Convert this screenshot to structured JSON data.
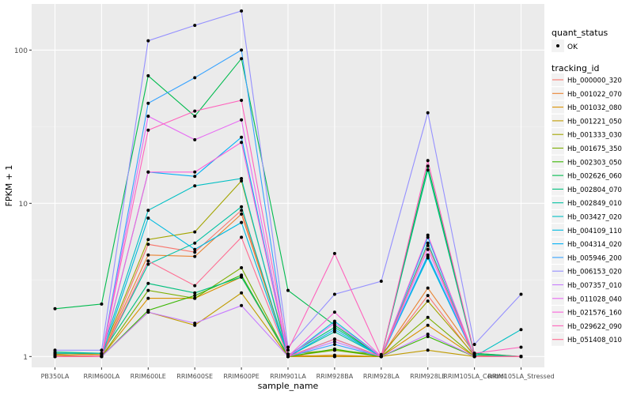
{
  "chart_data": {
    "type": "line",
    "xlabel": "sample_name",
    "ylabel": "FPKM + 1",
    "y_scale": "log10",
    "ylim": [
      0.85,
      200
    ],
    "y_ticks": [
      1,
      10,
      100
    ],
    "y_tick_labels": [
      "1",
      "10",
      "100"
    ],
    "grid": true,
    "legend_position": "right",
    "categories": [
      "PB350LA",
      "RRIM600LA",
      "RRIM600LE",
      "RRIM600SE",
      "RRIM600PE",
      "RRIM901LA",
      "RRIM928BA",
      "RRIM928LA",
      "RRIM928LE",
      "RRIM105LA_Control",
      "RRIM105LA_Stressed"
    ],
    "quant_legend": {
      "title": "quant_status",
      "items": [
        "OK"
      ]
    },
    "series_legend_title": "tracking_id",
    "series": [
      {
        "name": "Hb_000000_320",
        "color": "#F8766D",
        "values": [
          1.03,
          1.0,
          5.4,
          4.8,
          9.0,
          1.0,
          1.0,
          1.0,
          2.5,
          1.0,
          1.0
        ]
      },
      {
        "name": "Hb_001022_070",
        "color": "#EA8331",
        "values": [
          1.05,
          1.02,
          4.6,
          4.5,
          8.5,
          1.02,
          1.0,
          1.0,
          2.8,
          1.05,
          1.0
        ]
      },
      {
        "name": "Hb_001032_080",
        "color": "#D89000",
        "values": [
          1.0,
          1.0,
          2.4,
          2.4,
          3.3,
          1.0,
          1.02,
          1.0,
          1.6,
          1.0,
          1.0
        ]
      },
      {
        "name": "Hb_001221_050",
        "color": "#C09B00",
        "values": [
          1.02,
          1.0,
          1.95,
          1.6,
          2.6,
          1.0,
          1.0,
          1.0,
          1.1,
          1.0,
          1.0
        ]
      },
      {
        "name": "Hb_001333_030",
        "color": "#A3A500",
        "values": [
          1.04,
          1.04,
          5.8,
          6.5,
          14.0,
          1.04,
          1.1,
          1.03,
          2.3,
          1.02,
          1.0
        ]
      },
      {
        "name": "Hb_001675_350",
        "color": "#7CAE00",
        "values": [
          1.0,
          1.0,
          2.7,
          2.4,
          3.8,
          1.0,
          1.1,
          1.0,
          1.8,
          1.0,
          1.0
        ]
      },
      {
        "name": "Hb_002303_050",
        "color": "#39B600",
        "values": [
          1.0,
          1.0,
          2.0,
          2.5,
          3.4,
          1.0,
          1.12,
          1.0,
          1.35,
          1.0,
          1.0
        ]
      },
      {
        "name": "Hb_002626_060",
        "color": "#00BB4E",
        "values": [
          2.05,
          2.2,
          68,
          37,
          88,
          2.7,
          1.6,
          1.0,
          17.5,
          1.05,
          1.0
        ]
      },
      {
        "name": "Hb_002804_070",
        "color": "#00BF7D",
        "values": [
          1.07,
          1.05,
          3.0,
          2.6,
          3.3,
          1.02,
          1.55,
          1.0,
          16.5,
          1.03,
          1.0
        ]
      },
      {
        "name": "Hb_002849_010",
        "color": "#00C1A3",
        "values": [
          1.0,
          1.0,
          4.0,
          5.5,
          9.5,
          1.0,
          1.45,
          1.0,
          5.5,
          1.0,
          1.0
        ]
      },
      {
        "name": "Hb_003427_020",
        "color": "#00BFC4",
        "values": [
          1.05,
          1.05,
          9.0,
          13,
          14.5,
          1.0,
          1.3,
          1.0,
          4.5,
          1.0,
          1.5
        ]
      },
      {
        "name": "Hb_004109_110",
        "color": "#00BAE0",
        "values": [
          1.0,
          1.0,
          8.0,
          5.0,
          7.5,
          1.0,
          1.7,
          1.0,
          4.4,
          1.0,
          1.0
        ]
      },
      {
        "name": "Hb_004314_020",
        "color": "#00B0F6",
        "values": [
          1.0,
          1.0,
          16,
          15,
          27,
          1.0,
          1.5,
          1.0,
          6.0,
          1.0,
          1.0
        ]
      },
      {
        "name": "Hb_005946_200",
        "color": "#35A2FF",
        "values": [
          1.0,
          1.0,
          45,
          66,
          100,
          1.0,
          1.2,
          1.0,
          4.6,
          1.0,
          1.0
        ]
      },
      {
        "name": "Hb_006153_020",
        "color": "#9590FF",
        "values": [
          1.1,
          1.1,
          115,
          145,
          180,
          1.15,
          2.55,
          3.1,
          39,
          1.2,
          2.55
        ]
      },
      {
        "name": "Hb_007357_010",
        "color": "#C77CFF",
        "values": [
          1.0,
          1.0,
          1.95,
          1.65,
          2.15,
          1.0,
          1.25,
          1.0,
          1.4,
          1.0,
          1.0
        ]
      },
      {
        "name": "Hb_011028_040",
        "color": "#E76BF3",
        "values": [
          1.0,
          1.0,
          37,
          26,
          35,
          1.0,
          1.65,
          1.0,
          5.0,
          1.0,
          1.0
        ]
      },
      {
        "name": "Hb_021576_160",
        "color": "#FA62DB",
        "values": [
          1.0,
          1.0,
          16,
          16,
          25,
          1.0,
          1.95,
          1.0,
          6.2,
          1.0,
          1.0
        ]
      },
      {
        "name": "Hb_029622_090",
        "color": "#FF62BC",
        "values": [
          1.0,
          1.0,
          30,
          40,
          47,
          1.1,
          4.7,
          1.0,
          19,
          1.05,
          1.15
        ]
      },
      {
        "name": "Hb_051408_010",
        "color": "#FF6C91",
        "values": [
          1.0,
          1.0,
          4.2,
          2.9,
          6.0,
          1.0,
          1.3,
          1.0,
          5.3,
          1.0,
          1.0
        ]
      }
    ]
  }
}
